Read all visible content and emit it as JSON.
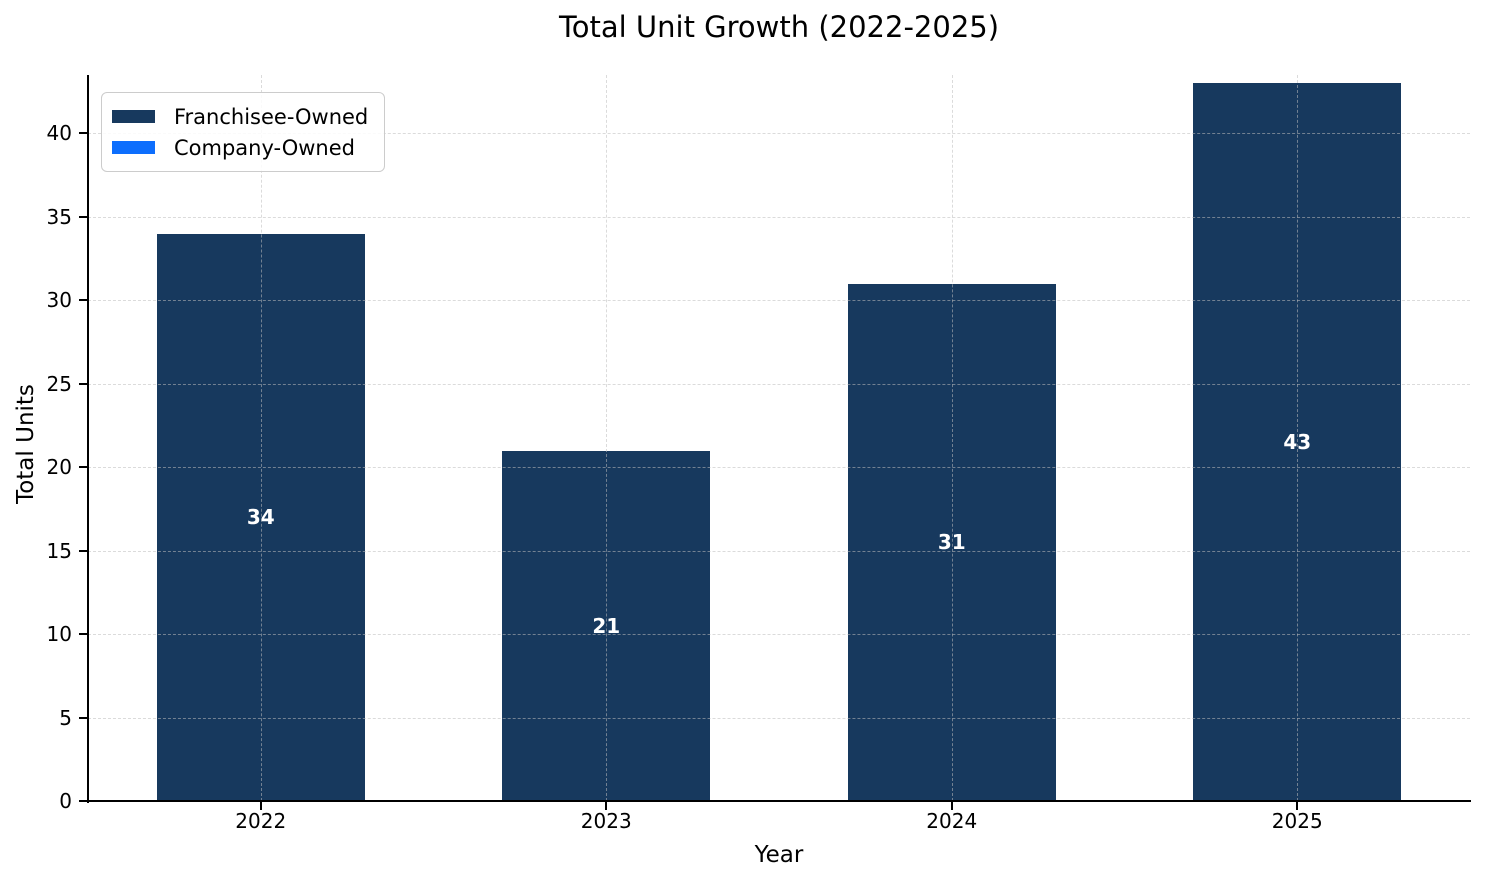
{
  "chart_data": {
    "type": "bar",
    "stacked": true,
    "title": "Total Unit Growth (2022-2025)",
    "xlabel": "Year",
    "ylabel": "Total Units",
    "categories": [
      "2022",
      "2023",
      "2024",
      "2025"
    ],
    "series": [
      {
        "name": "Franchisee-Owned",
        "color": "#17395E",
        "values": [
          34,
          21,
          31,
          43
        ]
      },
      {
        "name": "Company-Owned",
        "color": "#0D6EFD",
        "values": [
          0,
          0,
          0,
          0
        ]
      }
    ],
    "bar_labels": [
      "34",
      "21",
      "31",
      "43"
    ],
    "ylim": [
      0,
      43.5
    ],
    "yticks": [
      0,
      5,
      10,
      15,
      20,
      25,
      30,
      35,
      40
    ],
    "grid": "dashed-both-axes",
    "legend_position": "upper-left"
  },
  "colors": {
    "franchisee_owned": "#17395E",
    "company_owned": "#0D6EFD",
    "bar_value_text": "#ffffff",
    "grid": "#DCDCDC",
    "axis_text": "#000000",
    "legend_border": "#CCCCCC",
    "background": "#FFFFFF"
  }
}
